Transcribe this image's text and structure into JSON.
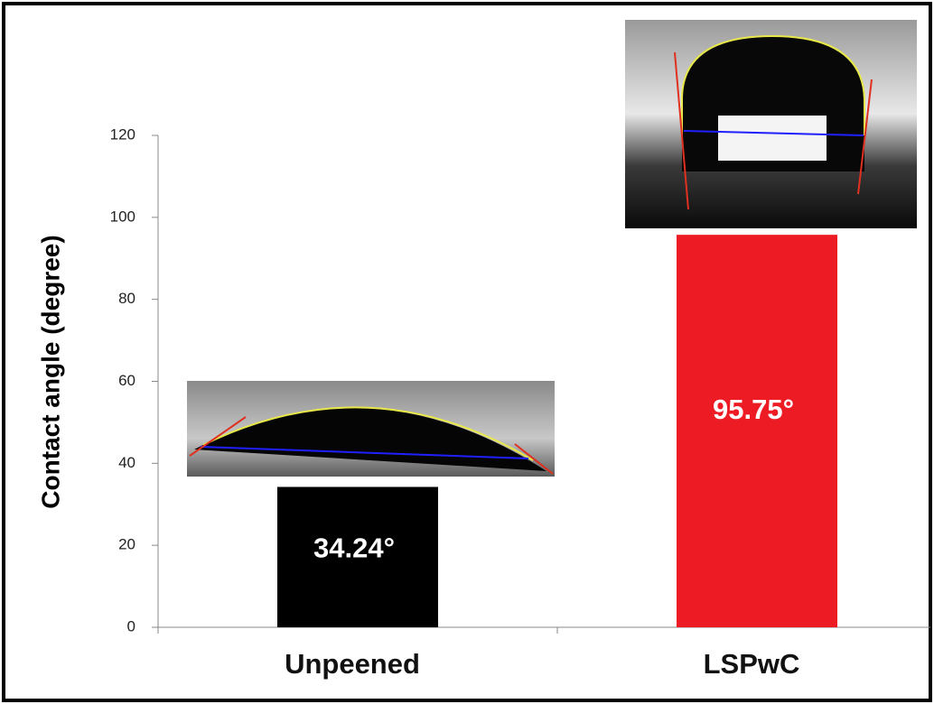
{
  "chart_data": {
    "type": "bar",
    "y_label": "Contact angle (degree)",
    "categories": [
      "Unpeened",
      "LSPwC"
    ],
    "values": [
      34.24,
      95.75
    ],
    "value_labels": [
      "34.24°",
      "95.75°"
    ],
    "colors": [
      "#000000",
      "#ed1c24"
    ],
    "ylim": [
      0,
      120
    ],
    "yticks": [
      0,
      20,
      40,
      60,
      80,
      100,
      120
    ]
  }
}
